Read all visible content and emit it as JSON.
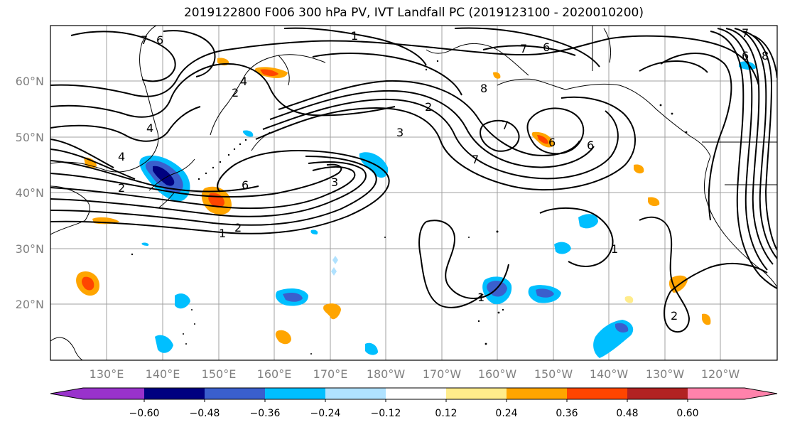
{
  "title": "2019122800 F006 300 hPa PV, IVT Landfall PC (2019123100 - 2020010200)",
  "map": {
    "lon_ticks": [
      "130°E",
      "140°E",
      "150°E",
      "160°E",
      "170°E",
      "180°W",
      "170°W",
      "160°W",
      "150°W",
      "140°W",
      "130°W",
      "120°W"
    ],
    "lat_ticks": [
      "20°N",
      "30°N",
      "40°N",
      "50°N",
      "60°N"
    ],
    "pv_contour_labels": [
      "1",
      "2",
      "3",
      "4",
      "6",
      "7",
      "8"
    ]
  },
  "colorbar": {
    "ticks": [
      "−0.60",
      "−0.48",
      "−0.36",
      "−0.24",
      "−0.12",
      "0.12",
      "0.24",
      "0.36",
      "0.48",
      "0.60"
    ],
    "colors": [
      "#9932cc",
      "#000080",
      "#3a5fcd",
      "#00bfff",
      "#b0e2ff",
      "#ffffff",
      "#ffec8b",
      "#ffa500",
      "#ff4500",
      "#b22222",
      "#ff82ab"
    ]
  }
}
